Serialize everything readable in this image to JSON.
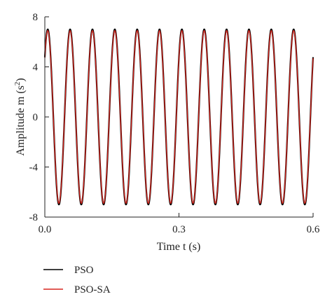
{
  "chart_data": {
    "type": "line",
    "xlabel": "Time t (s)",
    "ylabel_main": "Amplitude m (s",
    "ylabel_sup": "2",
    "ylabel_close": ")",
    "xlim": [
      0.0,
      0.6
    ],
    "ylim": [
      -8,
      8
    ],
    "xticks": [
      0.0,
      0.3,
      0.6
    ],
    "xtick_labels": [
      "0.0",
      "0.3",
      "0.6"
    ],
    "yticks": [
      8,
      4,
      0,
      -4,
      -8
    ],
    "ytick_labels": [
      "8",
      "4",
      "0",
      "-4",
      "-8"
    ],
    "grid": false,
    "legend_position": "bottom-left",
    "signal": {
      "form": "sine",
      "amplitude": 7,
      "frequency_hz": 20,
      "phase_rad": 0.75,
      "x_start": 0.0,
      "x_end": 0.6
    },
    "series": [
      {
        "name": "PSO",
        "color": "#000000",
        "amplitude": 7,
        "frequency_hz": 20,
        "phase_rad": 0.75
      },
      {
        "name": "PSO-SA",
        "color": "#d7261e",
        "amplitude": 6.9,
        "frequency_hz": 20,
        "phase_rad": 0.75
      }
    ]
  }
}
